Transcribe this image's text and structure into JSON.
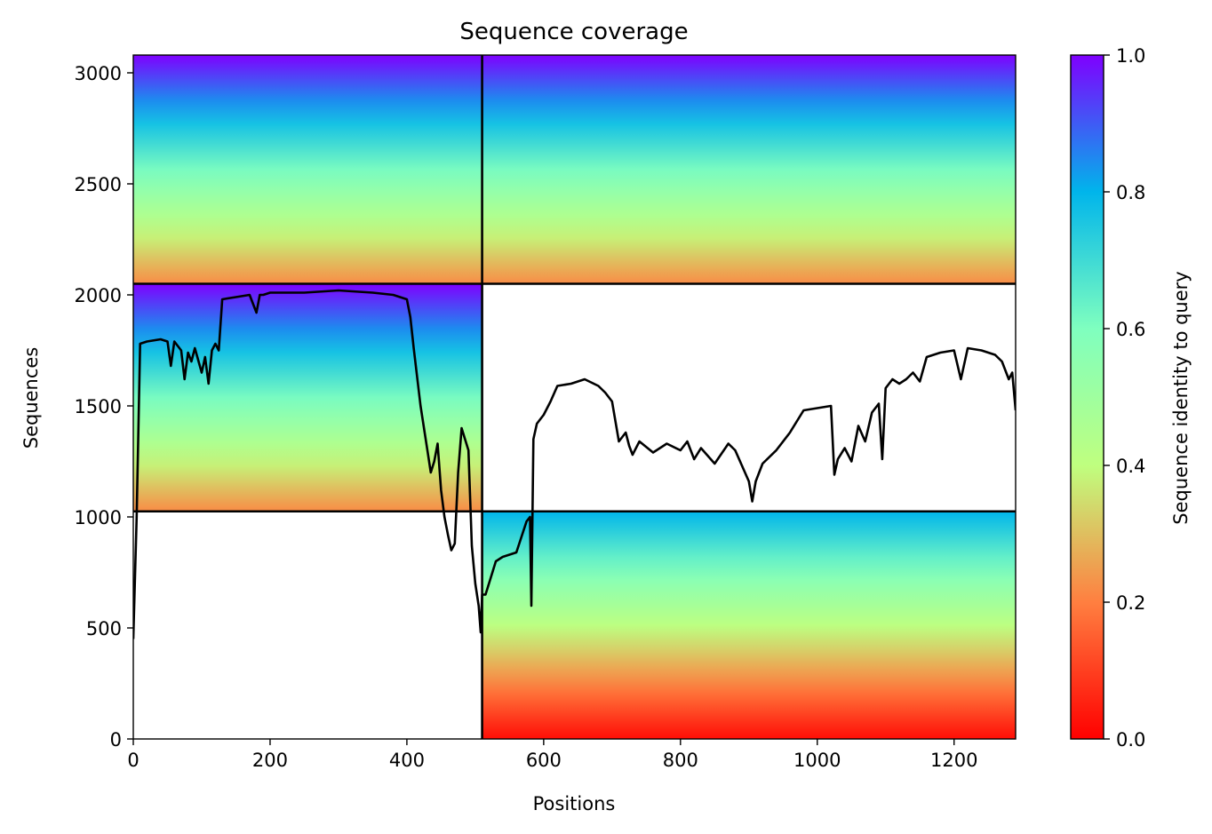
{
  "chart_data": {
    "type": "heatmap",
    "title": "Sequence coverage",
    "xlabel": "Positions",
    "ylabel": "Sequences",
    "xlim": [
      0,
      1290
    ],
    "ylim": [
      0,
      3080
    ],
    "xticks": [
      0,
      200,
      400,
      600,
      800,
      1000,
      1200
    ],
    "yticks": [
      0,
      500,
      1000,
      1500,
      2000,
      2500,
      3000
    ],
    "colorbar": {
      "label": "Sequence identity to query",
      "colormap": "rainbow",
      "range": [
        0.0,
        1.0
      ],
      "ticks": [
        0.0,
        0.2,
        0.4,
        0.6,
        0.8,
        1.0
      ]
    },
    "colormap_stops": [
      "#ff0000",
      "#ff7f40",
      "#bfff7f",
      "#7fffbf",
      "#00b5eb",
      "#7f00ff"
    ],
    "blocks": [
      {
        "x0": 0,
        "x1": 510,
        "y0": 1025,
        "y1": 2050,
        "id_min": 0.22,
        "id_max": 1.0
      },
      {
        "x0": 0,
        "x1": 510,
        "y0": 2050,
        "y1": 3080,
        "id_min": 0.22,
        "id_max": 1.0
      },
      {
        "x0": 510,
        "x1": 1290,
        "y0": 2050,
        "y1": 3080,
        "id_min": 0.22,
        "id_max": 1.0
      },
      {
        "x0": 510,
        "x1": 1290,
        "y0": 0,
        "y1": 1025,
        "id_min": 0.02,
        "id_max": 0.8
      }
    ],
    "boundaries": {
      "x": [
        510
      ],
      "y": [
        1025,
        2050
      ]
    },
    "coverage_line": {
      "name": "",
      "x": [
        0,
        5,
        10,
        20,
        40,
        50,
        55,
        60,
        70,
        75,
        80,
        85,
        90,
        100,
        105,
        110,
        115,
        120,
        125,
        130,
        150,
        170,
        180,
        185,
        190,
        200,
        250,
        300,
        350,
        380,
        400,
        405,
        410,
        420,
        430,
        435,
        440,
        445,
        450,
        455,
        460,
        465,
        470,
        475,
        480,
        490,
        495,
        500,
        505,
        508,
        510,
        515,
        520,
        530,
        540,
        560,
        575,
        580,
        582,
        585,
        590,
        600,
        610,
        620,
        640,
        660,
        680,
        690,
        700,
        710,
        720,
        725,
        730,
        740,
        760,
        780,
        800,
        810,
        820,
        830,
        850,
        870,
        880,
        890,
        900,
        905,
        910,
        920,
        940,
        960,
        980,
        1000,
        1020,
        1025,
        1030,
        1040,
        1050,
        1060,
        1070,
        1080,
        1090,
        1095,
        1100,
        1110,
        1120,
        1130,
        1140,
        1150,
        1160,
        1180,
        1200,
        1210,
        1220,
        1240,
        1260,
        1270,
        1280,
        1285,
        1290
      ],
      "y": [
        450,
        1000,
        1780,
        1790,
        1800,
        1790,
        1680,
        1790,
        1750,
        1620,
        1740,
        1700,
        1760,
        1650,
        1720,
        1600,
        1750,
        1780,
        1750,
        1980,
        1990,
        2000,
        1920,
        2000,
        2000,
        2010,
        2010,
        2020,
        2010,
        2000,
        1980,
        1900,
        1760,
        1500,
        1300,
        1200,
        1250,
        1330,
        1120,
        1000,
        920,
        850,
        880,
        1200,
        1400,
        1300,
        870,
        700,
        600,
        480,
        650,
        650,
        700,
        800,
        820,
        840,
        980,
        1000,
        600,
        1350,
        1420,
        1460,
        1520,
        1590,
        1600,
        1620,
        1590,
        1560,
        1520,
        1340,
        1380,
        1320,
        1280,
        1340,
        1290,
        1330,
        1300,
        1340,
        1260,
        1310,
        1240,
        1330,
        1300,
        1230,
        1160,
        1070,
        1160,
        1240,
        1300,
        1380,
        1480,
        1490,
        1500,
        1190,
        1260,
        1310,
        1250,
        1410,
        1340,
        1470,
        1510,
        1260,
        1580,
        1620,
        1600,
        1620,
        1650,
        1610,
        1720,
        1740,
        1750,
        1620,
        1760,
        1750,
        1730,
        1700,
        1620,
        1650,
        1480
      ]
    }
  }
}
